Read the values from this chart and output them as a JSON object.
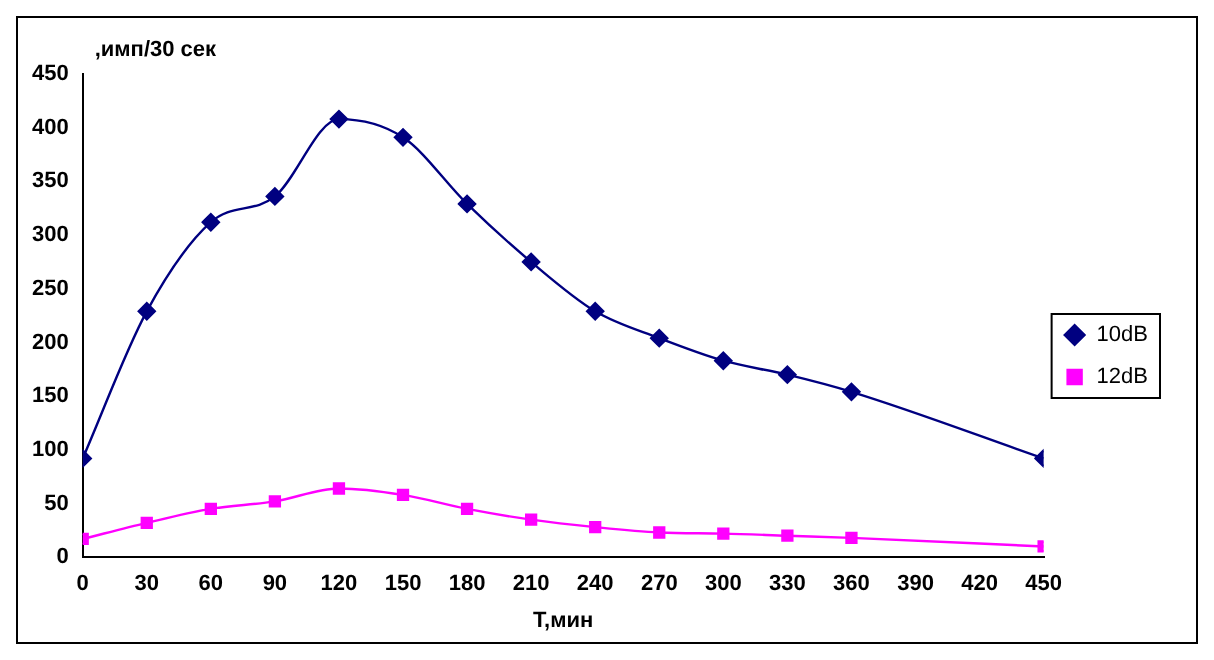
{
  "chart_data": {
    "type": "line",
    "xlabel": "T,мин",
    "ylabel": ",имп/30 сек",
    "xlim": [
      0,
      450
    ],
    "xticks": [
      0,
      30,
      60,
      90,
      120,
      150,
      180,
      210,
      240,
      270,
      300,
      330,
      360,
      390,
      420,
      450
    ],
    "ylim": [
      0,
      450
    ],
    "yticks": [
      0,
      50,
      100,
      150,
      200,
      250,
      300,
      350,
      400,
      450
    ],
    "grid": false,
    "legend": "right",
    "series": [
      {
        "name": "10dB",
        "color": "#000080",
        "marker": "diamond",
        "x": [
          0,
          30,
          60,
          90,
          120,
          150,
          180,
          210,
          240,
          270,
          300,
          330,
          360,
          450
        ],
        "values": [
          92,
          229,
          312,
          336,
          408,
          391,
          329,
          275,
          229,
          204,
          183,
          170,
          154,
          92
        ]
      },
      {
        "name": "12dB",
        "color": "#ff00ff",
        "marker": "square",
        "x": [
          0,
          30,
          60,
          90,
          120,
          150,
          180,
          210,
          240,
          270,
          300,
          330,
          360,
          450
        ],
        "values": [
          17,
          32,
          45,
          52,
          64,
          58,
          45,
          35,
          28,
          23,
          22,
          20,
          18,
          10
        ]
      }
    ]
  }
}
